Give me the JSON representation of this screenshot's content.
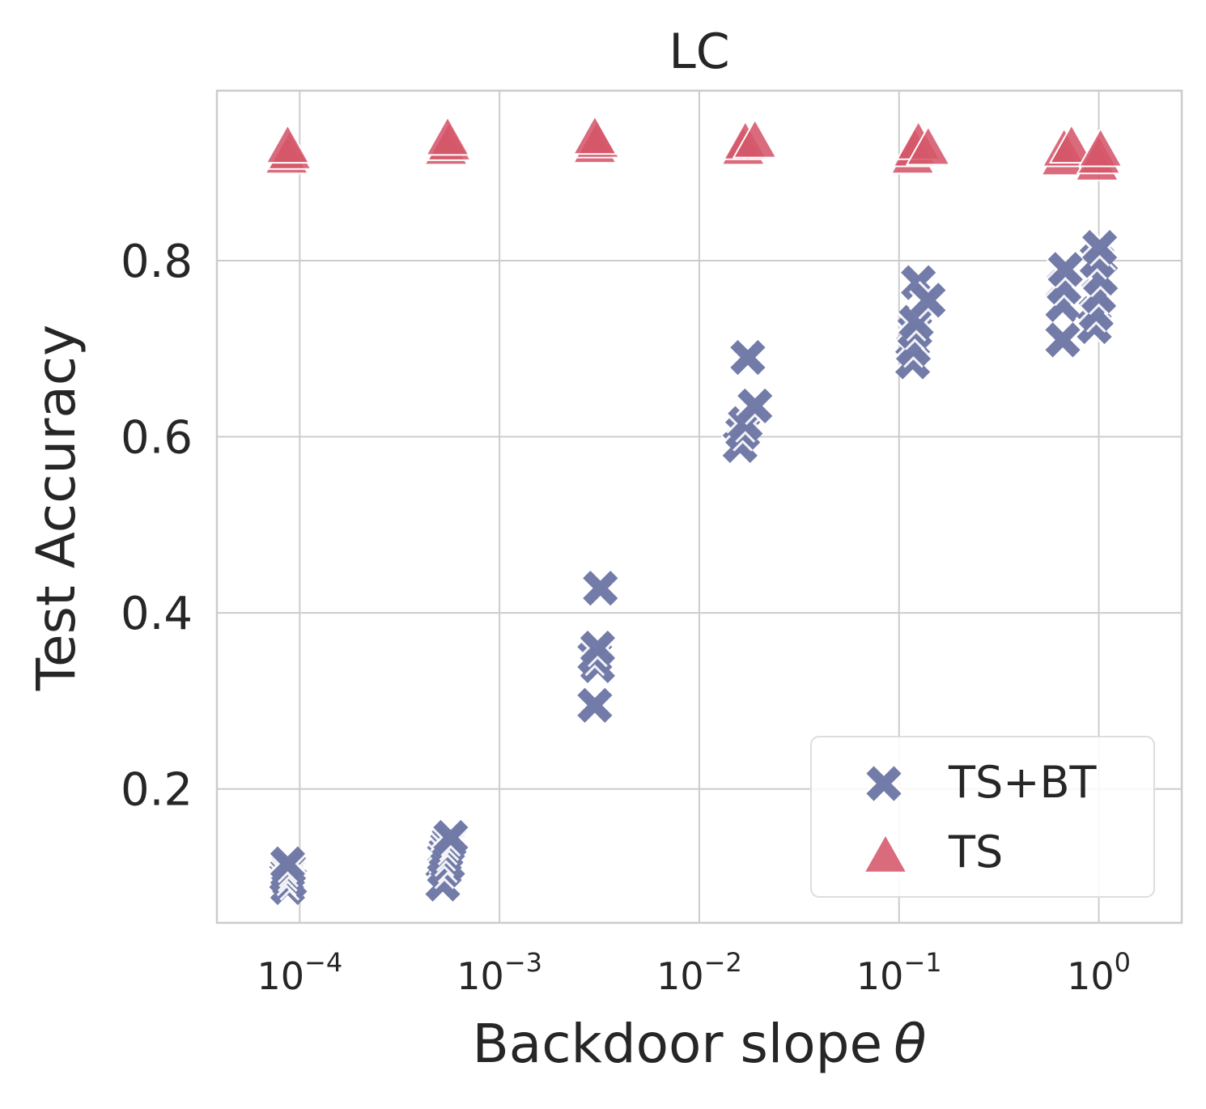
{
  "chart_data": {
    "type": "scatter",
    "title": "LC",
    "xlabel": "Backdoor slope",
    "xlabel_symbol": "θ",
    "ylabel": "Test Accuracy",
    "xscale": "log",
    "xlim": [
      3.85e-05,
      2.6
    ],
    "ylim": [
      0.048,
      0.993
    ],
    "grid": true,
    "x_ticks": [
      {
        "value": 0.0001,
        "base": "10",
        "exp": "−4"
      },
      {
        "value": 0.001,
        "base": "10",
        "exp": "−3"
      },
      {
        "value": 0.01,
        "base": "10",
        "exp": "−2"
      },
      {
        "value": 0.1,
        "base": "10",
        "exp": "−1"
      },
      {
        "value": 1,
        "base": "10",
        "exp": "0"
      }
    ],
    "y_ticks": [
      {
        "value": 0.2,
        "label": "0.2"
      },
      {
        "value": 0.4,
        "label": "0.4"
      },
      {
        "value": 0.6,
        "label": "0.6"
      },
      {
        "value": 0.8,
        "label": "0.8"
      }
    ],
    "legend_position": "lower-right",
    "series": [
      {
        "name": "TS+BT",
        "marker": "X",
        "color": "#5b6499",
        "points": [
          {
            "x": 8.7e-05,
            "y": 0.088
          },
          {
            "x": 8.9e-05,
            "y": 0.095
          },
          {
            "x": 8.6e-05,
            "y": 0.1
          },
          {
            "x": 8.7e-05,
            "y": 0.105
          },
          {
            "x": 8.8e-05,
            "y": 0.11
          },
          {
            "x": 8.7e-05,
            "y": 0.115
          },
          {
            "x": 0.00052,
            "y": 0.092
          },
          {
            "x": 0.00053,
            "y": 0.108
          },
          {
            "x": 0.00055,
            "y": 0.115
          },
          {
            "x": 0.00053,
            "y": 0.122
          },
          {
            "x": 0.00054,
            "y": 0.128
          },
          {
            "x": 0.00055,
            "y": 0.135
          },
          {
            "x": 0.00056,
            "y": 0.14
          },
          {
            "x": 0.00057,
            "y": 0.145
          },
          {
            "x": 0.003,
            "y": 0.295
          },
          {
            "x": 0.0031,
            "y": 0.34
          },
          {
            "x": 0.003,
            "y": 0.35
          },
          {
            "x": 0.0031,
            "y": 0.36
          },
          {
            "x": 0.0032,
            "y": 0.428
          },
          {
            "x": 0.016,
            "y": 0.59
          },
          {
            "x": 0.0165,
            "y": 0.605
          },
          {
            "x": 0.017,
            "y": 0.615
          },
          {
            "x": 0.0175,
            "y": 0.69
          },
          {
            "x": 0.019,
            "y": 0.635
          },
          {
            "x": 0.117,
            "y": 0.685
          },
          {
            "x": 0.118,
            "y": 0.7
          },
          {
            "x": 0.12,
            "y": 0.72
          },
          {
            "x": 0.122,
            "y": 0.73
          },
          {
            "x": 0.125,
            "y": 0.775
          },
          {
            "x": 0.14,
            "y": 0.755
          },
          {
            "x": 0.66,
            "y": 0.71
          },
          {
            "x": 0.66,
            "y": 0.75
          },
          {
            "x": 0.67,
            "y": 0.77
          },
          {
            "x": 0.68,
            "y": 0.79
          },
          {
            "x": 0.95,
            "y": 0.725
          },
          {
            "x": 0.97,
            "y": 0.74
          },
          {
            "x": 1.0,
            "y": 0.76
          },
          {
            "x": 1.02,
            "y": 0.78
          },
          {
            "x": 0.98,
            "y": 0.8
          },
          {
            "x": 1.01,
            "y": 0.815
          }
        ]
      },
      {
        "name": "TS",
        "marker": "triangle",
        "color": "#d5566a",
        "points": [
          {
            "x": 8.6e-05,
            "y": 0.92
          },
          {
            "x": 8.9e-05,
            "y": 0.925
          },
          {
            "x": 8.7e-05,
            "y": 0.932
          },
          {
            "x": 0.00054,
            "y": 0.93
          },
          {
            "x": 0.00056,
            "y": 0.935
          },
          {
            "x": 0.00055,
            "y": 0.941
          },
          {
            "x": 0.003,
            "y": 0.932
          },
          {
            "x": 0.0031,
            "y": 0.938
          },
          {
            "x": 0.003,
            "y": 0.942
          },
          {
            "x": 0.0166,
            "y": 0.93
          },
          {
            "x": 0.017,
            "y": 0.936
          },
          {
            "x": 0.019,
            "y": 0.938
          },
          {
            "x": 0.117,
            "y": 0.92
          },
          {
            "x": 0.12,
            "y": 0.928
          },
          {
            "x": 0.125,
            "y": 0.936
          },
          {
            "x": 0.14,
            "y": 0.93
          },
          {
            "x": 0.66,
            "y": 0.918
          },
          {
            "x": 0.67,
            "y": 0.928
          },
          {
            "x": 0.73,
            "y": 0.932
          },
          {
            "x": 0.98,
            "y": 0.912
          },
          {
            "x": 1.0,
            "y": 0.92
          },
          {
            "x": 1.02,
            "y": 0.928
          }
        ]
      }
    ]
  }
}
